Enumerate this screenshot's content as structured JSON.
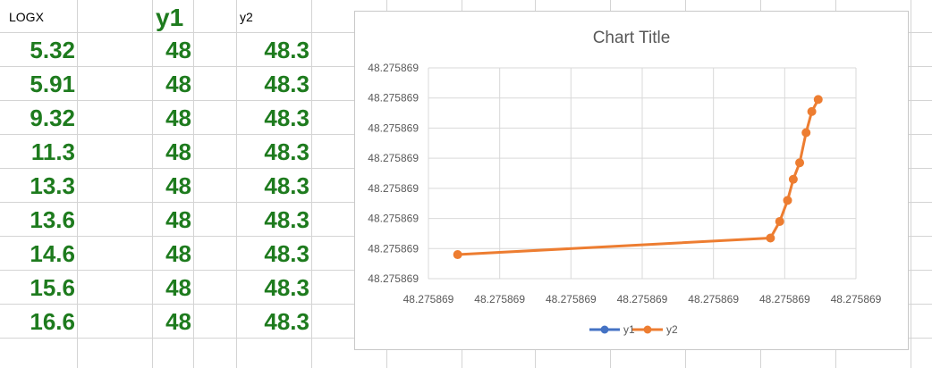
{
  "sheet": {
    "headers": {
      "col_a": "LOGX",
      "col_b": "y1",
      "col_c": "y2"
    },
    "rows": [
      {
        "logx": "5.32",
        "y1": "48",
        "y2": "48.3"
      },
      {
        "logx": "5.91",
        "y1": "48",
        "y2": "48.3"
      },
      {
        "logx": "9.32",
        "y1": "48",
        "y2": "48.3"
      },
      {
        "logx": "11.3",
        "y1": "48",
        "y2": "48.3"
      },
      {
        "logx": "13.3",
        "y1": "48",
        "y2": "48.3"
      },
      {
        "logx": "13.6",
        "y1": "48",
        "y2": "48.3"
      },
      {
        "logx": "14.6",
        "y1": "48",
        "y2": "48.3"
      },
      {
        "logx": "15.6",
        "y1": "48",
        "y2": "48.3"
      },
      {
        "logx": "16.6",
        "y1": "48",
        "y2": "48.3"
      }
    ]
  },
  "colors": {
    "cell_text_green": "#1e7b1e",
    "series_y1": "#4472c4",
    "series_y2": "#ed7d31",
    "gridline": "#d9d9d9"
  },
  "chart_data": {
    "type": "line",
    "title": "Chart Title",
    "xlabel": "",
    "ylabel": "",
    "x_tick_labels": [
      "48.275869",
      "48.275869",
      "48.275869",
      "48.275869",
      "48.275869",
      "48.275869",
      "48.275869"
    ],
    "y_tick_labels": [
      "48.275869",
      "48.275869",
      "48.275869",
      "48.275869",
      "48.275869",
      "48.275869",
      "48.275869",
      "48.275869"
    ],
    "x_axis_range": [
      0,
      6
    ],
    "y_axis_range": [
      0,
      7
    ],
    "grid": true,
    "legend_position": "bottom",
    "series": [
      {
        "name": "y1",
        "color": "#4472c4",
        "points": []
      },
      {
        "name": "y2",
        "color": "#ed7d31",
        "points": [
          {
            "x": 0.41,
            "y": 0.8
          },
          {
            "x": 4.8,
            "y": 1.35
          },
          {
            "x": 4.93,
            "y": 1.9
          },
          {
            "x": 5.04,
            "y": 2.6
          },
          {
            "x": 5.12,
            "y": 3.3
          },
          {
            "x": 5.21,
            "y": 3.85
          },
          {
            "x": 5.3,
            "y": 4.85
          },
          {
            "x": 5.38,
            "y": 5.55
          },
          {
            "x": 5.47,
            "y": 5.95
          }
        ]
      }
    ]
  }
}
